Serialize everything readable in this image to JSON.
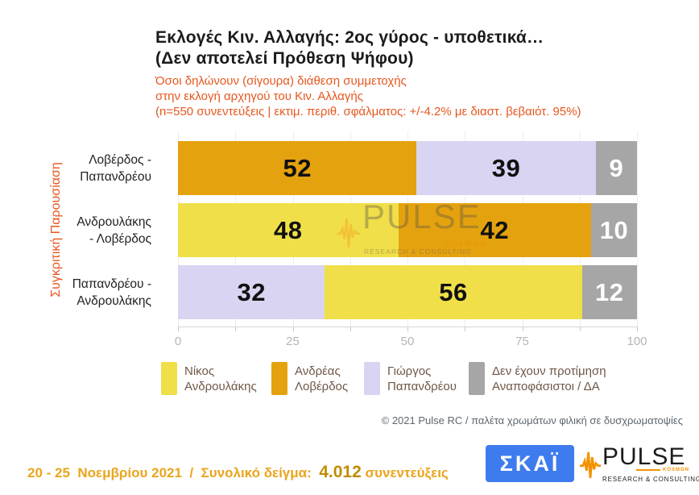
{
  "chart_data": {
    "type": "bar",
    "orientation": "horizontal",
    "stacked": true,
    "title_line1": "Εκλογές Κιν. Αλλαγής: 2ος γύρος - υποθετικά…",
    "title_line2": "(Δεν αποτελεί Πρόθεση Ψήφου)",
    "subtitle_line1": "Όσοι δηλώνουν (σίγουρα) διάθεση συμμετοχής",
    "subtitle_line2": "στην εκλογή αρχηγού του Κιν. Αλλαγής",
    "subtitle_line3": "(n=550 συνεντεύξεις | εκτιμ. περιθ. σφάλματος: +/-4.2% με διαστ. βεβαιότ. 95%)",
    "side_label": "Συγκριτική  Παρουσίαση",
    "axis": {
      "min": 0,
      "max": 100,
      "major_ticks": [
        0,
        25,
        50,
        75,
        100
      ],
      "minor_step": 12.5,
      "grid": true,
      "position": "bottom"
    },
    "categories": [
      "Λοβέρδος - Παπανδρέου",
      "Ανδρουλάκης - Λοβέρδος",
      "Παπανδρέου - Ανδρουλάκης"
    ],
    "rows": [
      {
        "category_lines": [
          "Λοβέρδος -",
          "Παπανδρέου"
        ],
        "segments": [
          {
            "name": "Ανδρέας Λοβέρδος",
            "value": 52,
            "fill": "#e4a20e",
            "text_color": "#111111"
          },
          {
            "name": "Γιώργος Παπανδρέου",
            "value": 39,
            "fill": "#d8d4f2",
            "text_color": "#111111"
          },
          {
            "name": "Δεν έχουν προτίμηση Αναποφάσιστοι / ΔΑ",
            "value": 9,
            "fill": "#a6a6a6",
            "text_color": "#ffffff"
          }
        ]
      },
      {
        "category_lines": [
          "Ανδρουλάκης",
          "- Λοβέρδος"
        ],
        "segments": [
          {
            "name": "Νίκος Ανδρουλάκης",
            "value": 48,
            "fill": "#f0df48",
            "text_color": "#111111"
          },
          {
            "name": "Ανδρέας Λοβέρδος",
            "value": 42,
            "fill": "#e4a20e",
            "text_color": "#111111"
          },
          {
            "name": "Δεν έχουν προτίμηση Αναποφάσιστοι / ΔΑ",
            "value": 10,
            "fill": "#a6a6a6",
            "text_color": "#ffffff"
          }
        ]
      },
      {
        "category_lines": [
          "Παπανδρέου -",
          "Ανδρουλάκης"
        ],
        "segments": [
          {
            "name": "Γιώργος Παπανδρέου",
            "value": 32,
            "fill": "#d8d4f2",
            "text_color": "#111111"
          },
          {
            "name": "Νίκος Ανδρουλάκης",
            "value": 56,
            "fill": "#f0df48",
            "text_color": "#111111"
          },
          {
            "name": "Δεν έχουν προτίμηση Αναποφάσιστοι / ΔΑ",
            "value": 12,
            "fill": "#a6a6a6",
            "text_color": "#ffffff"
          }
        ]
      }
    ],
    "series": [
      {
        "name": "Νίκος Ανδρουλάκης",
        "color": "#f0df48",
        "values": [
          null,
          48,
          56
        ]
      },
      {
        "name": "Ανδρέας Λοβέρδος",
        "color": "#e4a20e",
        "values": [
          52,
          42,
          null
        ]
      },
      {
        "name": "Γιώργος Παπανδρέου",
        "color": "#d8d4f2",
        "values": [
          39,
          null,
          32
        ]
      },
      {
        "name": "Δεν έχουν προτίμηση Αναποφάσιστοι / ΔΑ",
        "color": "#a6a6a6",
        "values": [
          9,
          10,
          12
        ]
      }
    ],
    "legend": {
      "position": "bottom",
      "items": [
        {
          "line1": "Νίκος",
          "line2": "Ανδρουλάκης",
          "color": "#f0df48"
        },
        {
          "line1": "Ανδρέας",
          "line2": "Λοβέρδος",
          "color": "#e4a20e"
        },
        {
          "line1": "Γιώργος",
          "line2": "Παπανδρέου",
          "color": "#d8d4f2"
        },
        {
          "line1": "Δεν έχουν προτίμηση",
          "line2": "Αναποφάσιστοι / ΔΑ",
          "color": "#a6a6a6"
        }
      ]
    }
  },
  "watermark": {
    "text": "PULSE",
    "tag": "KOSMON",
    "sub": "RESEARCH & CONSULTING"
  },
  "footer": {
    "copyright": "© 2021 Pulse RC   /   παλέτα χρωμάτων φιλική σε δυσχρωματοψίες",
    "date_prefix": "20 - 25  Νοεμβρίου 2021  /  Συνολικό δείγμα:  ",
    "sample": "4.012",
    "date_suffix": " συνεντεύξεις"
  },
  "logos": {
    "skai": "ΣΚΑΪ",
    "pulse": "PULSE",
    "pulse_tag": "KOSMON",
    "pulse_sub": "RESEARCH & CONSULTING"
  },
  "colors": {
    "androulakis_yellow": "#f0df48",
    "loverdos_orange": "#e4a20e",
    "papandreou_lavender": "#d8d4f2",
    "undecided_gray": "#a6a6a6",
    "accent_orange_text": "#e5571e",
    "date_gold": "#e9a51c",
    "sample_gold": "#c18c00",
    "skai_blue": "#3e7bee",
    "pulse_logo_orange": "#f39200",
    "legend_text_brown": "#6f5748",
    "copyright_slate": "#5c6670"
  }
}
